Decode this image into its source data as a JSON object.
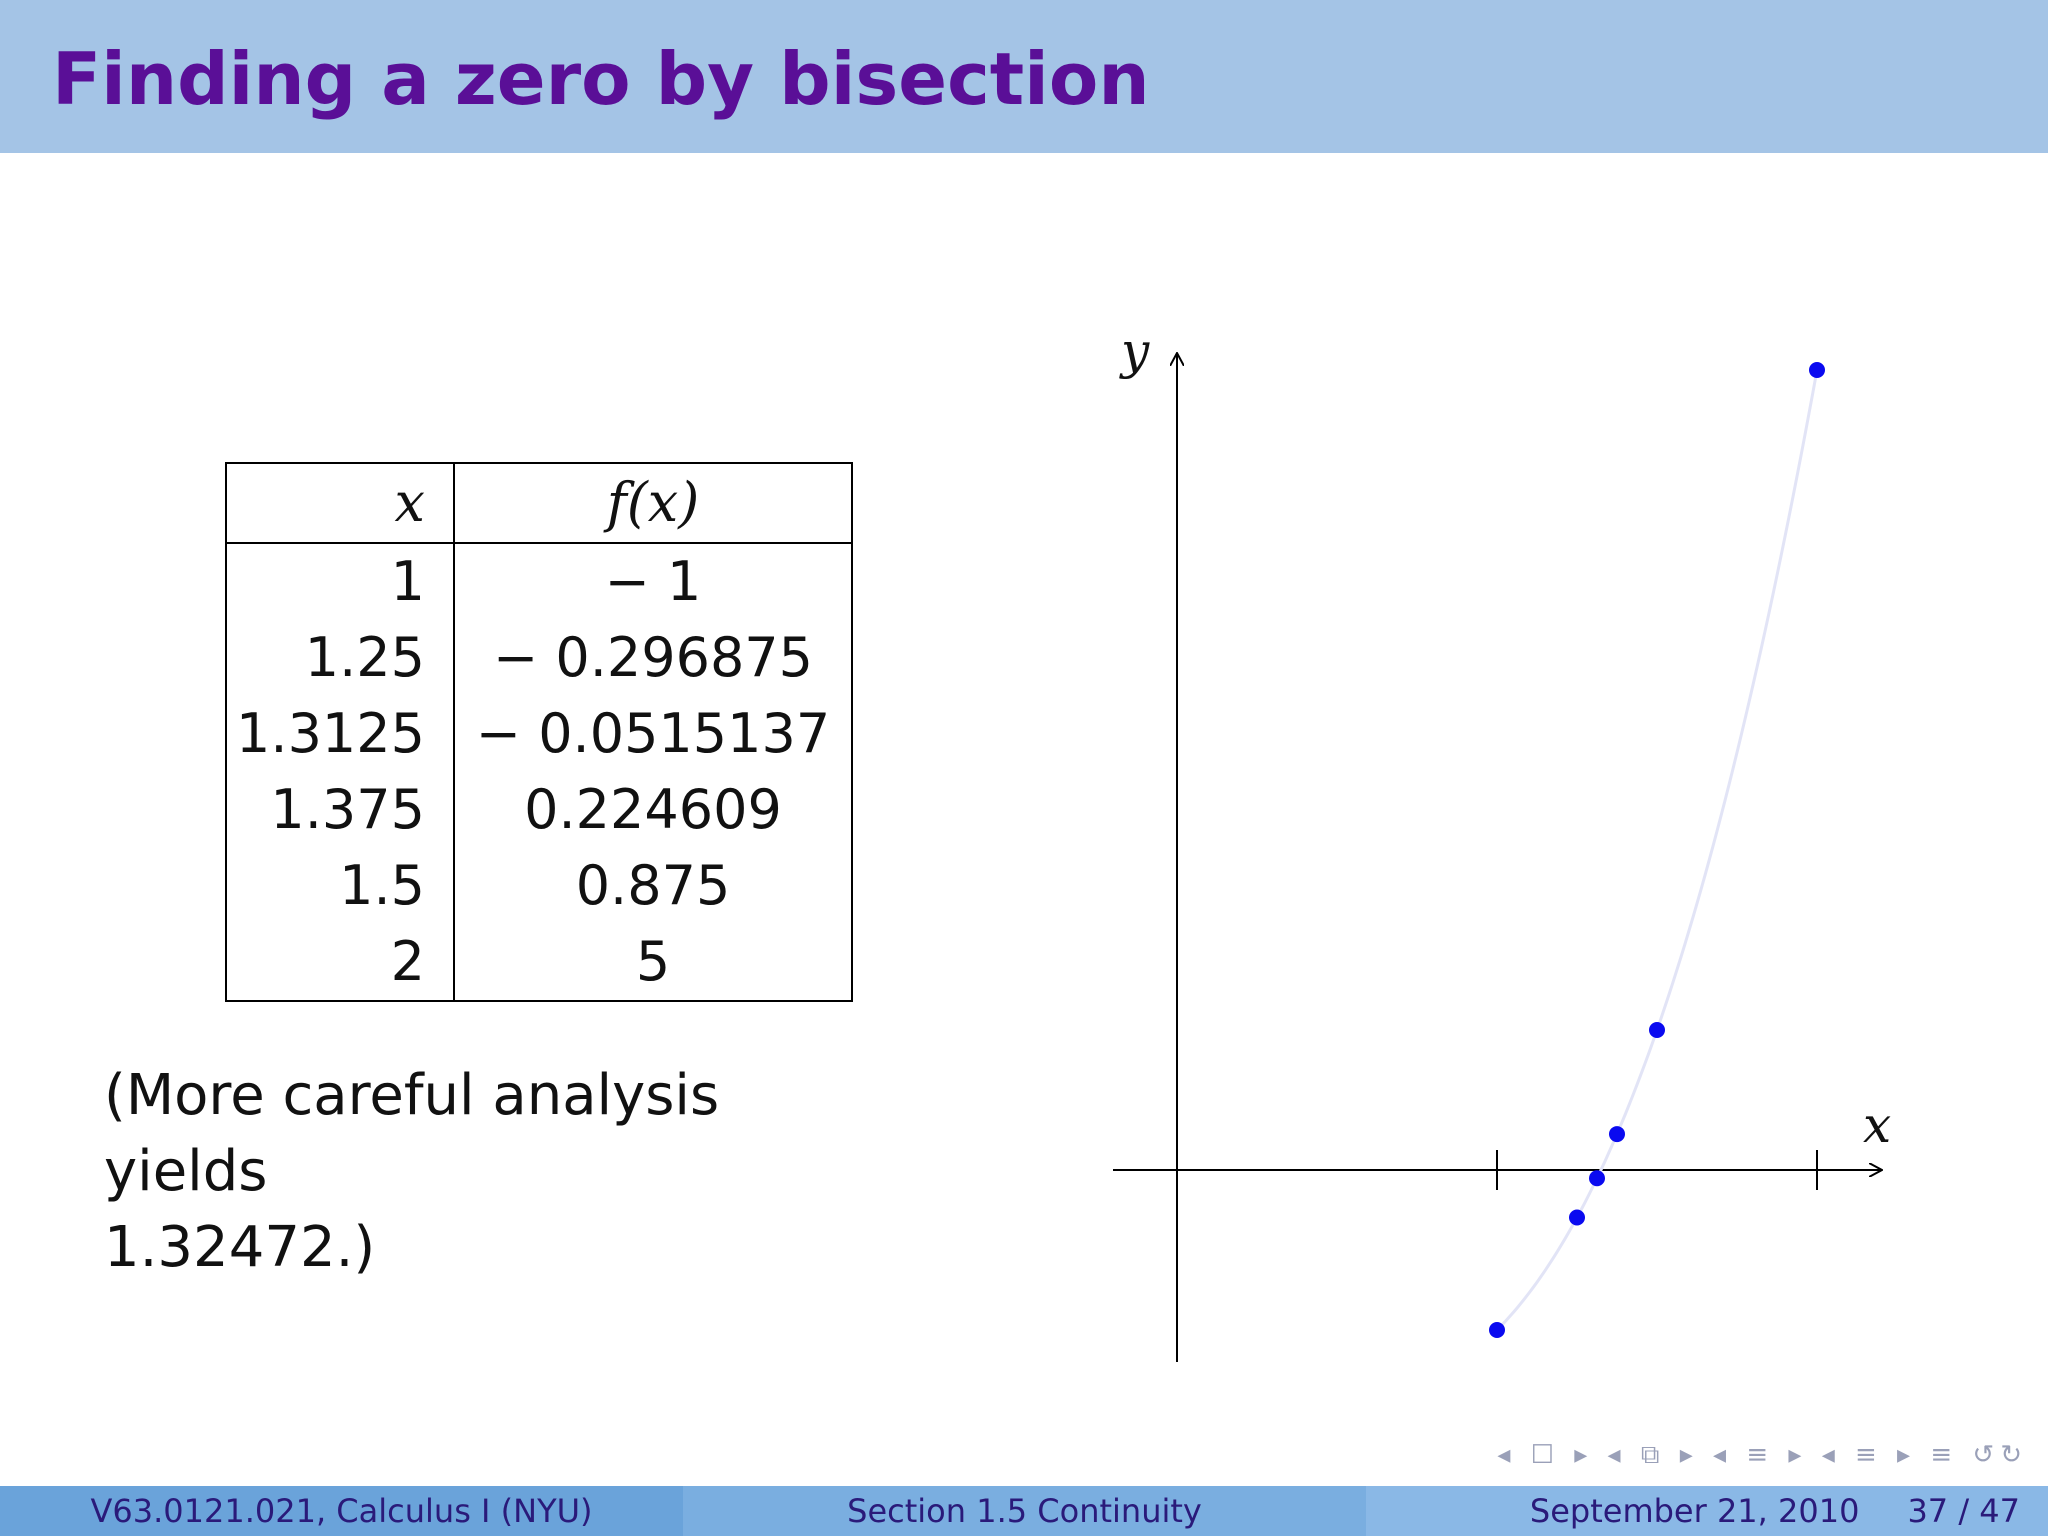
{
  "slide": {
    "title": "Finding a zero by bisection"
  },
  "table": {
    "headers": {
      "x": "x",
      "fx": "f(x)"
    },
    "rows": [
      {
        "x": "1",
        "fx": "− 1"
      },
      {
        "x": "1.25",
        "fx": "− 0.296875"
      },
      {
        "x": "1.3125",
        "fx": "− 0.0515137"
      },
      {
        "x": "1.375",
        "fx": "0.224609"
      },
      {
        "x": "1.5",
        "fx": "0.875"
      },
      {
        "x": "2",
        "fx": "5"
      }
    ]
  },
  "note": {
    "line1": "(More careful analysis yields",
    "line2": "1.32472.)"
  },
  "chart_data": {
    "type": "scatter",
    "xlabel": "x",
    "ylabel": "y",
    "x_ticks": [
      1,
      2
    ],
    "xlim": [
      -0.2,
      2.2
    ],
    "ylim": [
      -1.2,
      5.1
    ],
    "connecting_curve": true,
    "series": [
      {
        "x": [
          1,
          1.25,
          1.3125,
          1.375,
          1.5,
          2
        ],
        "values": [
          -1,
          -0.296875,
          -0.0515137,
          0.224609,
          0.875,
          5
        ]
      }
    ],
    "point_color": "#0a0af0",
    "curve_color": "#e2e4f6"
  },
  "navigation": {
    "symbols": "◂ ☐ ▸ ◂ ⧉ ▸ ◂ ≡ ▸ ◂ ≡ ▸ ≡ ↺↻"
  },
  "footer": {
    "course": "V63.0121.021, Calculus I  (NYU)",
    "section": "Section 1.5  Continuity",
    "date": "September 21, 2010",
    "page": "37 / 47"
  },
  "colors": {
    "title_bar": "#a4c4e6",
    "title_text": "#5a0f97",
    "footer_left": "#6aa3da",
    "footer_mid": "#7aaee0",
    "footer_right": "#8ab8e6"
  }
}
